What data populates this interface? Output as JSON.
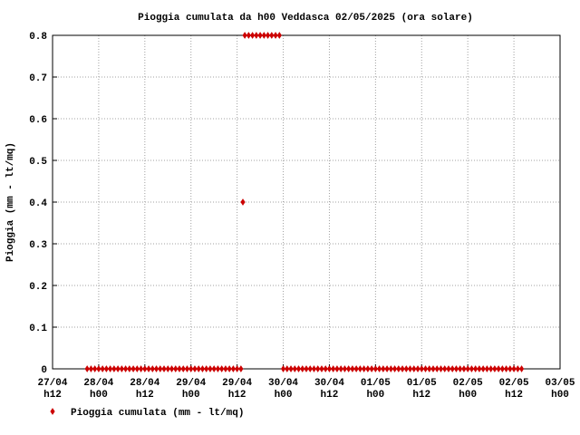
{
  "chart_data": {
    "type": "scatter",
    "title": "Pioggia cumulata da h00 Veddasca 02/05/2025 (ora solare)",
    "y_label": "Pioggia (mm - lt/mq)",
    "xlim": [
      12,
      144
    ],
    "xticks": [
      {
        "value": 12,
        "label": [
          "27/04",
          "h12"
        ]
      },
      {
        "value": 24,
        "label": [
          "28/04",
          "h00"
        ]
      },
      {
        "value": 36,
        "label": [
          "28/04",
          "h12"
        ]
      },
      {
        "value": 48,
        "label": [
          "29/04",
          "h00"
        ]
      },
      {
        "value": 60,
        "label": [
          "29/04",
          "h12"
        ]
      },
      {
        "value": 72,
        "label": [
          "30/04",
          "h00"
        ]
      },
      {
        "value": 84,
        "label": [
          "30/04",
          "h12"
        ]
      },
      {
        "value": 96,
        "label": [
          "01/05",
          "h00"
        ]
      },
      {
        "value": 108,
        "label": [
          "01/05",
          "h12"
        ]
      },
      {
        "value": 120,
        "label": [
          "02/05",
          "h00"
        ]
      },
      {
        "value": 132,
        "label": [
          "02/05",
          "h12"
        ]
      },
      {
        "value": 144,
        "label": [
          "03/05",
          "h00"
        ]
      }
    ],
    "ylim": [
      0,
      0.8
    ],
    "yticks": [
      0,
      0.1,
      0.2,
      0.3,
      0.4,
      0.5,
      0.6,
      0.7,
      0.8
    ],
    "grid": true,
    "legend": "bottom-left",
    "series": [
      {
        "name": "Pioggia cumulata (mm - lt/mq)",
        "color": "#cc0000",
        "x": [
          21,
          22,
          23,
          24,
          25,
          26,
          27,
          28,
          29,
          30,
          31,
          32,
          33,
          34,
          35,
          36,
          37,
          38,
          39,
          40,
          41,
          42,
          43,
          44,
          45,
          46,
          47,
          48,
          49,
          50,
          51,
          52,
          53,
          54,
          55,
          56,
          57,
          58,
          59,
          60,
          61,
          61.5,
          62,
          63,
          64,
          65,
          66,
          67,
          68,
          69,
          70,
          71,
          72,
          73,
          74,
          75,
          76,
          77,
          78,
          79,
          80,
          81,
          82,
          83,
          84,
          85,
          86,
          87,
          88,
          89,
          90,
          91,
          92,
          93,
          94,
          95,
          96,
          97,
          98,
          99,
          100,
          101,
          102,
          103,
          104,
          105,
          106,
          107,
          108,
          109,
          110,
          111,
          112,
          113,
          114,
          115,
          116,
          117,
          118,
          119,
          120,
          121,
          122,
          123,
          124,
          125,
          126,
          127,
          128,
          129,
          130,
          131,
          132,
          133,
          134
        ],
        "values": [
          0,
          0,
          0,
          0,
          0,
          0,
          0,
          0,
          0,
          0,
          0,
          0,
          0,
          0,
          0,
          0,
          0,
          0,
          0,
          0,
          0,
          0,
          0,
          0,
          0,
          0,
          0,
          0,
          0,
          0,
          0,
          0,
          0,
          0,
          0,
          0,
          0,
          0,
          0,
          0,
          0,
          0.4,
          0.8,
          0.8,
          0.8,
          0.8,
          0.8,
          0.8,
          0.8,
          0.8,
          0.8,
          0.8,
          0,
          0,
          0,
          0,
          0,
          0,
          0,
          0,
          0,
          0,
          0,
          0,
          0,
          0,
          0,
          0,
          0,
          0,
          0,
          0,
          0,
          0,
          0,
          0,
          0,
          0,
          0,
          0,
          0,
          0,
          0,
          0,
          0,
          0,
          0,
          0,
          0,
          0,
          0,
          0,
          0,
          0,
          0,
          0,
          0,
          0,
          0,
          0,
          0,
          0,
          0,
          0,
          0,
          0,
          0,
          0,
          0,
          0,
          0,
          0,
          0,
          0,
          0
        ]
      }
    ]
  }
}
